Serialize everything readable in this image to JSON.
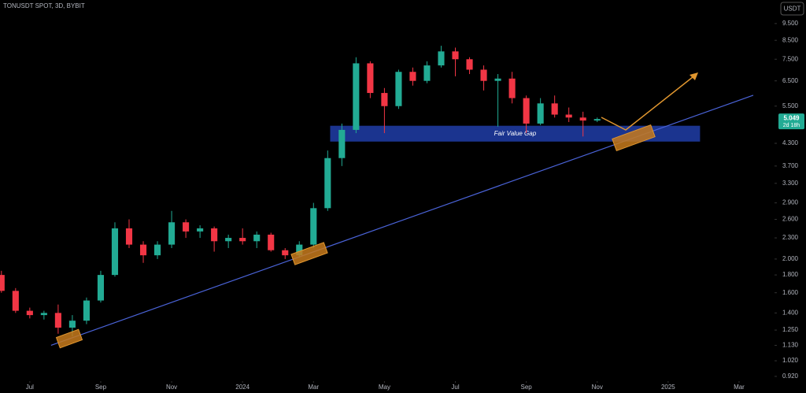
{
  "chart_data": {
    "type": "candlestick",
    "title": "TONUSDT SPOT, 3D, BYBIT",
    "currency": "USDT",
    "log_scale": true,
    "up_color": "#22ab94",
    "down_color": "#f23645",
    "x": [
      -0.8,
      -0.4,
      0.0,
      0.4,
      0.8,
      1.2,
      1.6,
      2.0,
      2.4,
      2.8,
      3.2,
      3.6,
      4.0,
      4.4,
      4.8,
      5.2,
      5.6,
      6.0,
      6.4,
      6.8,
      7.2,
      7.6,
      8.0,
      8.4,
      8.8,
      9.2,
      9.6,
      10.0,
      10.4,
      10.8,
      11.2,
      11.6,
      12.0,
      12.4,
      12.8,
      13.2,
      13.6,
      14.0,
      14.4,
      14.8,
      15.2,
      15.6,
      16.0
    ],
    "open": [
      1.8,
      1.62,
      1.42,
      1.38,
      1.4,
      1.27,
      1.33,
      1.52,
      1.8,
      2.45,
      2.2,
      2.05,
      2.2,
      2.55,
      2.4,
      2.45,
      2.25,
      2.3,
      2.25,
      2.35,
      2.12,
      2.05,
      2.2,
      2.8,
      3.9,
      4.7,
      7.3,
      6.0,
      5.5,
      6.9,
      6.5,
      7.2,
      7.9,
      7.5,
      7.0,
      6.5,
      6.6,
      5.8,
      4.9,
      5.6,
      5.2,
      5.1,
      5.0
    ],
    "high": [
      1.85,
      1.65,
      1.45,
      1.42,
      1.48,
      1.38,
      1.55,
      1.85,
      2.55,
      2.6,
      2.25,
      2.25,
      2.75,
      2.6,
      2.5,
      2.48,
      2.35,
      2.45,
      2.4,
      2.38,
      2.15,
      2.25,
      2.9,
      4.1,
      4.9,
      7.6,
      7.4,
      6.2,
      7.0,
      7.1,
      7.4,
      8.2,
      8.1,
      7.6,
      7.2,
      6.8,
      6.9,
      5.9,
      5.8,
      5.9,
      5.45,
      5.3,
      5.1
    ],
    "low": [
      1.6,
      1.4,
      1.35,
      1.34,
      1.22,
      1.2,
      1.3,
      1.5,
      1.78,
      2.15,
      1.95,
      2.0,
      2.15,
      2.3,
      2.3,
      2.1,
      2.15,
      2.2,
      2.15,
      2.1,
      2.0,
      2.02,
      2.15,
      2.75,
      3.7,
      4.6,
      5.8,
      4.6,
      5.4,
      6.3,
      6.4,
      7.1,
      6.7,
      6.8,
      6.1,
      4.8,
      5.6,
      4.6,
      4.85,
      5.1,
      4.95,
      4.5,
      4.95
    ],
    "close": [
      1.62,
      1.42,
      1.38,
      1.4,
      1.27,
      1.33,
      1.52,
      1.8,
      2.45,
      2.2,
      2.05,
      2.2,
      2.55,
      2.4,
      2.45,
      2.25,
      2.3,
      2.25,
      2.35,
      2.12,
      2.05,
      2.2,
      2.8,
      3.9,
      4.7,
      7.3,
      6.0,
      5.5,
      6.9,
      6.5,
      7.2,
      7.9,
      7.5,
      7.0,
      6.5,
      6.6,
      5.8,
      4.9,
      5.6,
      5.2,
      5.1,
      5.0,
      5.05
    ],
    "xlim": [
      -0.84,
      20.8
    ],
    "ylim": [
      0.91,
      11.1
    ],
    "xticks": [
      {
        "value": 0,
        "label": "Jul"
      },
      {
        "value": 2,
        "label": "Sep"
      },
      {
        "value": 4,
        "label": "Nov"
      },
      {
        "value": 6,
        "label": "2024"
      },
      {
        "value": 8,
        "label": "Mar"
      },
      {
        "value": 10,
        "label": "May"
      },
      {
        "value": 12,
        "label": "Jul"
      },
      {
        "value": 14,
        "label": "Sep"
      },
      {
        "value": 16,
        "label": "Nov"
      },
      {
        "value": 18,
        "label": "2025"
      },
      {
        "value": 20,
        "label": "Mar"
      }
    ],
    "yticks": [
      {
        "value": 9.5,
        "label": "9.500"
      },
      {
        "value": 8.5,
        "label": "8.500"
      },
      {
        "value": 7.5,
        "label": "7.500"
      },
      {
        "value": 6.5,
        "label": "6.500"
      },
      {
        "value": 5.5,
        "label": "5.500"
      },
      {
        "value": 4.3,
        "label": "4.300"
      },
      {
        "value": 3.7,
        "label": "3.700"
      },
      {
        "value": 3.3,
        "label": "3.300"
      },
      {
        "value": 2.9,
        "label": "2.900"
      },
      {
        "value": 2.6,
        "label": "2.600"
      },
      {
        "value": 2.3,
        "label": "2.300"
      },
      {
        "value": 2.0,
        "label": "2.000"
      },
      {
        "value": 1.8,
        "label": "1.800"
      },
      {
        "value": 1.6,
        "label": "1.600"
      },
      {
        "value": 1.4,
        "label": "1.400"
      },
      {
        "value": 1.25,
        "label": "1.250"
      },
      {
        "value": 1.13,
        "label": "1.130"
      },
      {
        "value": 1.02,
        "label": "1.020"
      },
      {
        "value": 0.92,
        "label": "0.920"
      }
    ],
    "last_price": 5.049,
    "countdown": "2d 18h",
    "fair_value_gap": {
      "label": "Fair Value Gap",
      "color": "#1e3a9e",
      "xlim": [
        8.47,
        18.9
      ],
      "ylim": [
        4.35,
        4.83
      ]
    },
    "trendline": {
      "color": "#4a63d8",
      "x": [
        0.6,
        20.4
      ],
      "y": [
        1.13,
        5.91
      ]
    }
  }
}
